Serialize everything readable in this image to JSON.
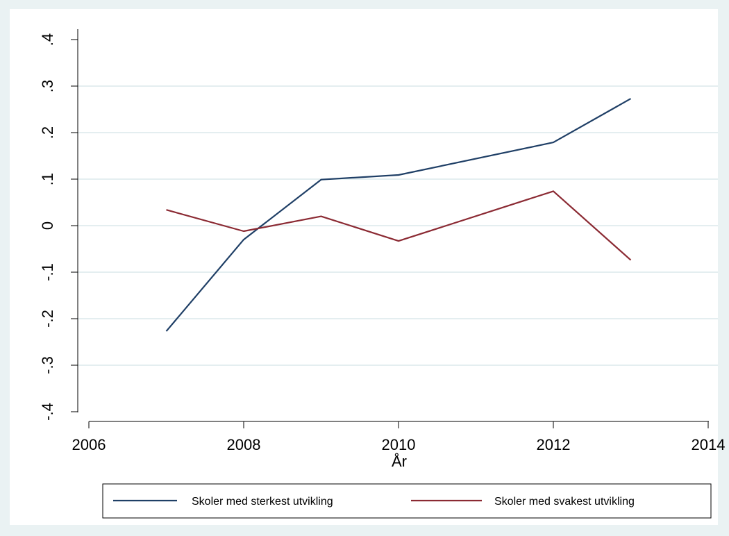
{
  "chart_data": {
    "type": "line",
    "title": "",
    "xlabel": "År",
    "ylabel": "",
    "x": [
      2007,
      2008,
      2009,
      2010,
      2012,
      2013
    ],
    "xlim": [
      2006,
      2014
    ],
    "ylim": [
      -0.4,
      0.4
    ],
    "x_ticks": [
      2006,
      2008,
      2010,
      2012,
      2014
    ],
    "x_tick_labels": [
      "2006",
      "2008",
      "2010",
      "2012",
      "2014"
    ],
    "y_ticks": [
      -0.4,
      -0.3,
      -0.2,
      -0.1,
      0,
      0.1,
      0.2,
      0.3,
      0.4
    ],
    "y_tick_labels": [
      "-.4",
      "-.3",
      "-.2",
      "-.1",
      "0",
      ".1",
      ".2",
      ".3",
      ".4"
    ],
    "grid": "horizontal",
    "legend_position": "bottom",
    "series": [
      {
        "name": "Skoler med sterkest utvikling",
        "color": "#1f3f66",
        "values": [
          -0.227,
          -0.03,
          0.099,
          0.109,
          0.179,
          0.273
        ]
      },
      {
        "name": "Skoler med svakest utvikling",
        "color": "#8b2a33",
        "values": [
          0.034,
          -0.012,
          0.02,
          -0.033,
          0.074,
          -0.074
        ]
      }
    ]
  },
  "colors": {
    "background": "#eaf2f3",
    "plot_area": "#ffffff",
    "grid": "#e4eef0",
    "axis": "#000000"
  }
}
